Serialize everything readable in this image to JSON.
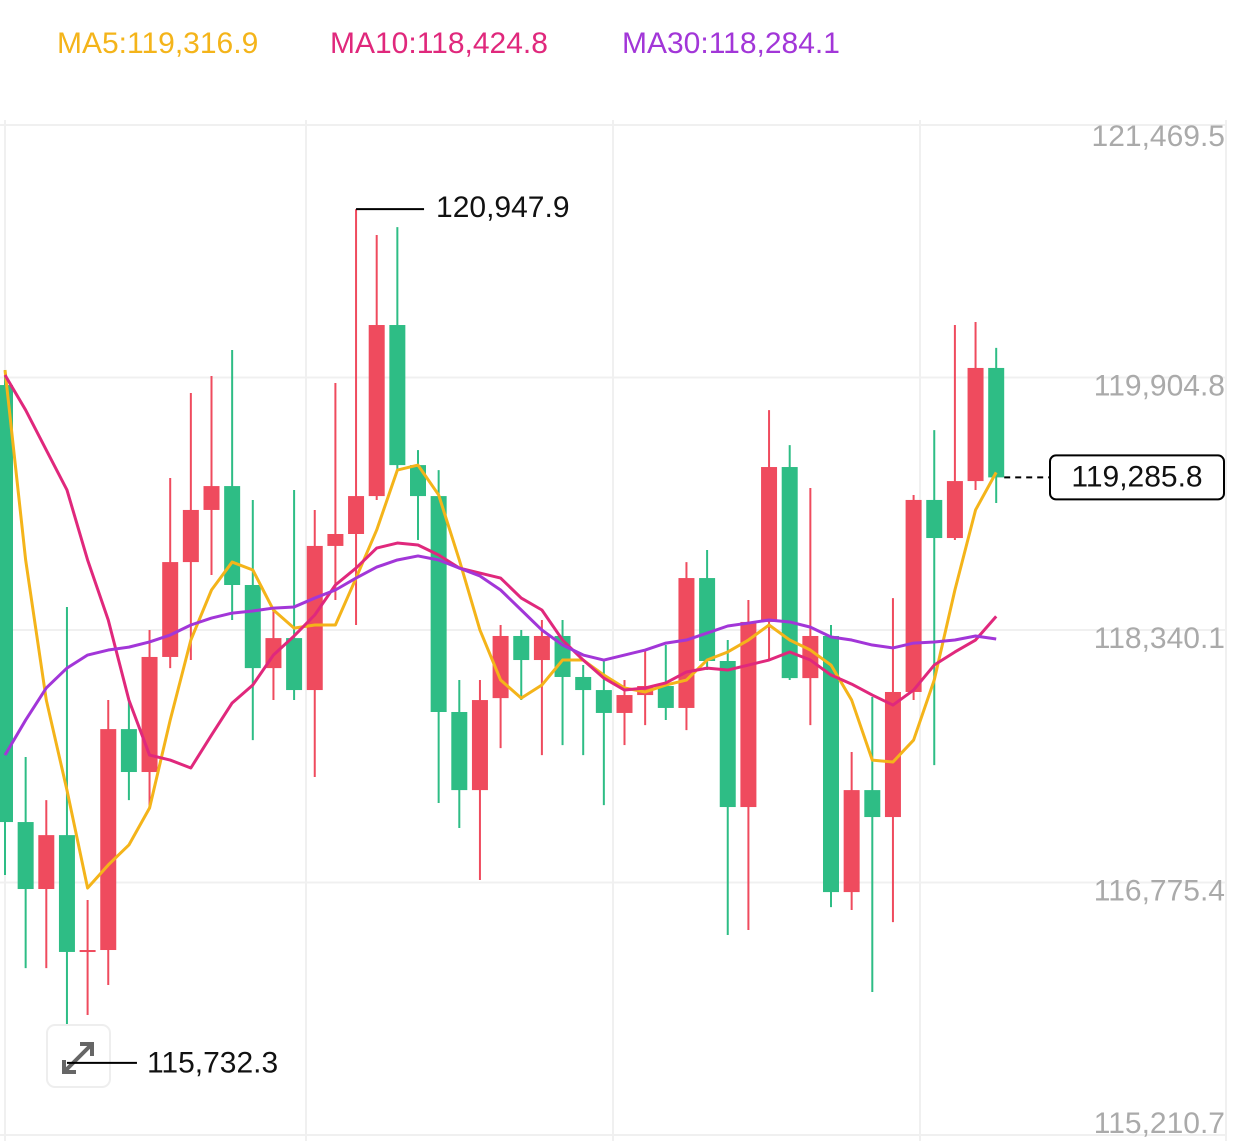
{
  "chart_data": {
    "type": "candlestick",
    "up_color": "#ef4b5e",
    "down_color": "#2ebd85",
    "ylim": [
      115210.7,
      121469.5
    ],
    "yticks": [
      {
        "value": 121469.5,
        "label": "121,469.5"
      },
      {
        "value": 119904.8,
        "label": "119,904.8"
      },
      {
        "value": 118340.1,
        "label": "118,340.1"
      },
      {
        "value": 116775.4,
        "label": "116,775.4"
      },
      {
        "value": 115210.7,
        "label": "115,210.7"
      }
    ],
    "grid": true,
    "open": [
      119858,
      117150,
      116735,
      117069,
      116345,
      116357,
      117726,
      117460,
      118173,
      118761,
      119084,
      119232,
      118619,
      118104,
      118290,
      117968,
      118861,
      118935,
      119170,
      120230,
      119362,
      119170,
      117832,
      117348,
      117918,
      118303,
      118154,
      118303,
      118049,
      117968,
      117826,
      117937,
      117993,
      117857,
      118662,
      118148,
      117243,
      118390,
      119350,
      118042,
      118303,
      116716,
      117348,
      117181,
      117956,
      119146,
      118910,
      119263,
      119964
    ],
    "high": [
      119951,
      117553,
      117286,
      118483,
      116667,
      117906,
      117906,
      118340,
      119282,
      119809,
      119914,
      120075,
      119146,
      118464,
      119208,
      119084,
      119871,
      120947.9,
      120788,
      120837,
      119455,
      119331,
      118030,
      118030,
      118371,
      118340,
      118402,
      118402,
      118123,
      118154,
      118030,
      118216,
      118247,
      118761,
      118836,
      118278,
      118526,
      119703,
      119486,
      119220,
      118371,
      117584,
      117925,
      118538,
      119177,
      119579,
      120230,
      120249,
      120088
    ],
    "low": [
      116822,
      116245,
      116245,
      115732.3,
      115954,
      116140,
      117286,
      117237,
      118104,
      118154,
      118681,
      118402,
      117658,
      117906,
      117906,
      117429,
      118526,
      118371,
      119146,
      119331,
      118898,
      117268,
      117113,
      116791,
      117608,
      117906,
      117565,
      117627,
      117565,
      117255,
      117627,
      117751,
      117782,
      117720,
      118092,
      116450,
      116481,
      118154,
      118030,
      117751,
      116623,
      116605,
      116097,
      116530,
      117906,
      117503,
      118898,
      119208,
      119127
    ],
    "close": [
      117150,
      116735,
      117069,
      116345,
      116357,
      117726,
      117460,
      118173,
      118761,
      119084,
      119232,
      118619,
      118104,
      118290,
      117968,
      118861,
      118935,
      119170,
      120230,
      119362,
      119170,
      117832,
      117348,
      117906,
      118303,
      118154,
      118303,
      118049,
      117968,
      117826,
      117937,
      117993,
      117857,
      118662,
      118148,
      117243,
      118390,
      119350,
      118042,
      118303,
      116716,
      117348,
      117181,
      117956,
      119146,
      118910,
      119263,
      119964,
      119285.8
    ],
    "series": [
      {
        "name": "MA5:119,316.9",
        "color": "#f4b41a",
        "values": [
          119951,
          118774,
          117906,
          117348,
          116741,
          116884,
          117008,
          117237,
          117782,
          118278,
          118588,
          118761,
          118712,
          118464,
          118352,
          118371,
          118371,
          118662,
          118960,
          119331,
          119362,
          119177,
          118774,
          118340,
          118030,
          117918,
          117999,
          118154,
          118154,
          118061,
          117981,
          117956,
          117999,
          118030,
          118154,
          118204,
          118278,
          118371,
          118278,
          118216,
          118123,
          117906,
          117534,
          117522,
          117658,
          118030,
          118588,
          119084,
          119316.9
        ]
      },
      {
        "name": "MA10:118,424.8",
        "color": "#e0287c",
        "values": [
          119920,
          119703,
          119455,
          119208,
          118774,
          118402,
          117906,
          117565,
          117534,
          117485,
          117689,
          117888,
          117999,
          118185,
          118303,
          118433,
          118619,
          118724,
          118848,
          118879,
          118867,
          118805,
          118724,
          118693,
          118662,
          118538,
          118464,
          118278,
          118154,
          118042,
          117968,
          117981,
          118012,
          118080,
          118104,
          118092,
          118123,
          118154,
          118204,
          118154,
          118061,
          118005,
          117937,
          117875,
          117968,
          118123,
          118204,
          118278,
          118424.8
        ]
      },
      {
        "name": "MA30:118,284.1",
        "color": "#a236d8",
        "values": [
          117565,
          117782,
          117981,
          118104,
          118185,
          118216,
          118234,
          118266,
          118309,
          118371,
          118414,
          118445,
          118458,
          118476,
          118483,
          118538,
          118588,
          118662,
          118730,
          118774,
          118799,
          118774,
          118724,
          118675,
          118588,
          118464,
          118340,
          118247,
          118185,
          118154,
          118185,
          118216,
          118259,
          118278,
          118321,
          118365,
          118383,
          118402,
          118390,
          118358,
          118297,
          118278,
          118247,
          118229,
          118259,
          118266,
          118278,
          118303,
          118284.1
        ]
      }
    ],
    "max_marker": {
      "value": 120947.9,
      "label": "120,947.9"
    },
    "min_marker": {
      "value": 115732.3,
      "label": "115,732.3"
    },
    "last_price": {
      "value": 119285.8,
      "label": "119,285.8"
    }
  }
}
